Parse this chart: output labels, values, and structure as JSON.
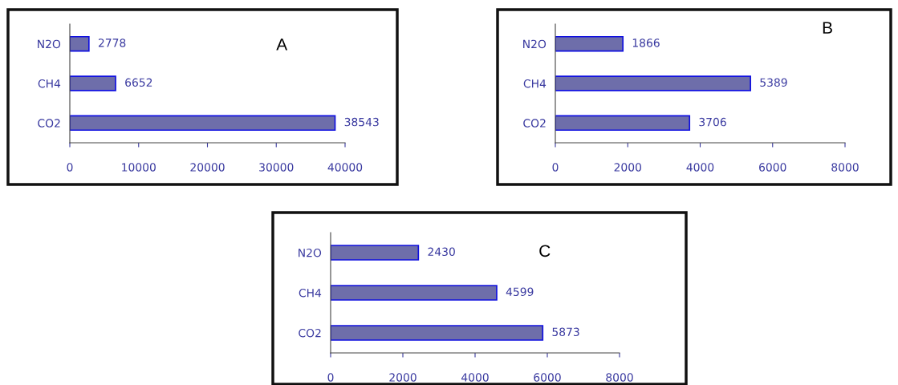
{
  "chart_data": [
    {
      "type": "bar",
      "orientation": "horizontal",
      "categories": [
        "N2O",
        "CH4",
        "CO2"
      ],
      "values": [
        2778,
        6652,
        38543
      ],
      "color": "#6e6eaa",
      "xlim": [
        0,
        40000
      ],
      "xticks": [
        0,
        10000,
        20000,
        30000,
        40000
      ],
      "data_labels": true,
      "grid": false,
      "legend": false,
      "annotations": [
        "A"
      ]
    },
    {
      "type": "bar",
      "orientation": "horizontal",
      "categories": [
        "N2O",
        "CH4",
        "CO2"
      ],
      "values": [
        1866,
        5389,
        3706
      ],
      "color": "#6e6eaa",
      "xlim": [
        0,
        8000
      ],
      "xticks": [
        0,
        2000,
        4000,
        6000,
        8000
      ],
      "data_labels": true,
      "grid": false,
      "legend": false,
      "annotations": [
        "B"
      ]
    },
    {
      "type": "bar",
      "orientation": "horizontal",
      "categories": [
        "N2O",
        "CH4",
        "CO2"
      ],
      "values": [
        2430,
        4599,
        5873
      ],
      "color": "#6e6eaa",
      "xlim": [
        0,
        8000
      ],
      "xticks": [
        0,
        2000,
        4000,
        6000,
        8000
      ],
      "data_labels": true,
      "grid": false,
      "legend": false,
      "annotations": [
        "C"
      ]
    }
  ]
}
